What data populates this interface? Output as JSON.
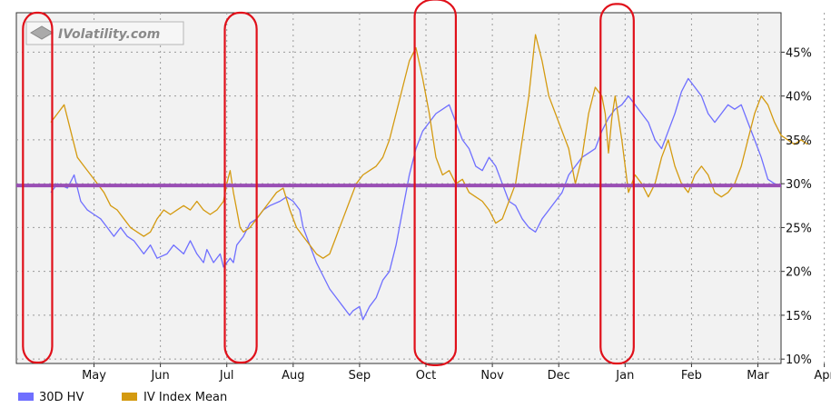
{
  "watermark": "IVolatility.com",
  "colors": {
    "background": "#ffffff",
    "plot_bg": "#f2f2f2",
    "grid": "#9a9a9a",
    "hv": "#6f6fff",
    "iv": "#d49a10",
    "reference": "#9a4fb5",
    "highlight": "#e0101a"
  },
  "chart_data": {
    "type": "line",
    "title": "",
    "xlabel": "",
    "ylabel": "",
    "x_ticks": [
      "May",
      "Jun",
      "Jul",
      "Aug",
      "Sep",
      "Oct",
      "Nov",
      "Dec",
      "Jan",
      "Feb",
      "Mar",
      "Apr"
    ],
    "y_ticks": [
      "10%",
      "15%",
      "20%",
      "25%",
      "30%",
      "35%",
      "40%",
      "45%"
    ],
    "ylim": [
      9.5,
      49.5
    ],
    "xlim": [
      0,
      12
    ],
    "grid": true,
    "legend_position": "bottom-left",
    "series": [
      {
        "name": "30D HV",
        "color_key": "hv",
        "points": [
          [
            0,
            29
          ],
          [
            0.1,
            30
          ],
          [
            0.25,
            29.5
          ],
          [
            0.35,
            31
          ],
          [
            0.45,
            28
          ],
          [
            0.55,
            27
          ],
          [
            0.65,
            26.5
          ],
          [
            0.75,
            26
          ],
          [
            0.85,
            25
          ],
          [
            0.95,
            24
          ],
          [
            1.05,
            25
          ],
          [
            1.15,
            24
          ],
          [
            1.25,
            23.5
          ],
          [
            1.4,
            22
          ],
          [
            1.5,
            23
          ],
          [
            1.6,
            21.5
          ],
          [
            1.75,
            22
          ],
          [
            1.85,
            23
          ],
          [
            2.0,
            22
          ],
          [
            2.1,
            23.5
          ],
          [
            2.2,
            22
          ],
          [
            2.3,
            21
          ],
          [
            2.35,
            22.5
          ],
          [
            2.45,
            21
          ],
          [
            2.55,
            22
          ],
          [
            2.6,
            20.5
          ],
          [
            2.7,
            21.5
          ],
          [
            2.75,
            21
          ],
          [
            2.8,
            23
          ],
          [
            2.9,
            24
          ],
          [
            3.0,
            25.5
          ],
          [
            3.1,
            26
          ],
          [
            3.2,
            27
          ],
          [
            3.3,
            27.5
          ],
          [
            3.45,
            28
          ],
          [
            3.55,
            28.5
          ],
          [
            3.65,
            28
          ],
          [
            3.75,
            27
          ],
          [
            3.8,
            25
          ],
          [
            3.9,
            23
          ],
          [
            4.0,
            21
          ],
          [
            4.1,
            19.5
          ],
          [
            4.2,
            18
          ],
          [
            4.3,
            17
          ],
          [
            4.4,
            16
          ],
          [
            4.5,
            15
          ],
          [
            4.55,
            15.5
          ],
          [
            4.65,
            16
          ],
          [
            4.7,
            14.5
          ],
          [
            4.8,
            16
          ],
          [
            4.9,
            17
          ],
          [
            5.0,
            19
          ],
          [
            5.1,
            20
          ],
          [
            5.2,
            23
          ],
          [
            5.3,
            27
          ],
          [
            5.4,
            31
          ],
          [
            5.5,
            34
          ],
          [
            5.6,
            36
          ],
          [
            5.7,
            37
          ],
          [
            5.8,
            38
          ],
          [
            5.9,
            38.5
          ],
          [
            6.0,
            39
          ],
          [
            6.1,
            37
          ],
          [
            6.2,
            35
          ],
          [
            6.3,
            34
          ],
          [
            6.4,
            32
          ],
          [
            6.5,
            31.5
          ],
          [
            6.6,
            33
          ],
          [
            6.7,
            32
          ],
          [
            6.8,
            30
          ],
          [
            6.9,
            28
          ],
          [
            7.0,
            27.5
          ],
          [
            7.1,
            26
          ],
          [
            7.2,
            25
          ],
          [
            7.3,
            24.5
          ],
          [
            7.4,
            26
          ],
          [
            7.5,
            27
          ],
          [
            7.6,
            28
          ],
          [
            7.7,
            29
          ],
          [
            7.8,
            31
          ],
          [
            7.9,
            32
          ],
          [
            8.0,
            33
          ],
          [
            8.1,
            33.5
          ],
          [
            8.2,
            34
          ],
          [
            8.3,
            36
          ],
          [
            8.4,
            37.5
          ],
          [
            8.5,
            38.5
          ],
          [
            8.6,
            39
          ],
          [
            8.7,
            40
          ],
          [
            8.8,
            39
          ],
          [
            8.9,
            38
          ],
          [
            9.0,
            37
          ],
          [
            9.1,
            35
          ],
          [
            9.2,
            34
          ],
          [
            9.3,
            36
          ],
          [
            9.4,
            38
          ],
          [
            9.5,
            40.5
          ],
          [
            9.6,
            42
          ],
          [
            9.7,
            41
          ],
          [
            9.8,
            40
          ],
          [
            9.9,
            38
          ],
          [
            10.0,
            37
          ],
          [
            10.1,
            38
          ],
          [
            10.2,
            39
          ],
          [
            10.3,
            38.5
          ],
          [
            10.4,
            39
          ],
          [
            10.5,
            37
          ],
          [
            10.6,
            35
          ],
          [
            10.7,
            33
          ],
          [
            10.8,
            30.5
          ],
          [
            10.9,
            30
          ],
          [
            11.0,
            29.8
          ]
        ]
      },
      {
        "name": "IV Index Mean",
        "color_key": "iv",
        "points": [
          [
            0,
            37
          ],
          [
            0.1,
            38
          ],
          [
            0.2,
            39
          ],
          [
            0.3,
            36
          ],
          [
            0.4,
            33
          ],
          [
            0.5,
            32
          ],
          [
            0.6,
            31
          ],
          [
            0.7,
            30
          ],
          [
            0.8,
            29
          ],
          [
            0.9,
            27.5
          ],
          [
            1.0,
            27
          ],
          [
            1.1,
            26
          ],
          [
            1.2,
            25
          ],
          [
            1.3,
            24.5
          ],
          [
            1.4,
            24
          ],
          [
            1.5,
            24.5
          ],
          [
            1.6,
            26
          ],
          [
            1.7,
            27
          ],
          [
            1.8,
            26.5
          ],
          [
            1.9,
            27
          ],
          [
            2.0,
            27.5
          ],
          [
            2.1,
            27
          ],
          [
            2.2,
            28
          ],
          [
            2.3,
            27
          ],
          [
            2.4,
            26.5
          ],
          [
            2.5,
            27
          ],
          [
            2.6,
            28
          ],
          [
            2.65,
            30
          ],
          [
            2.7,
            31.5
          ],
          [
            2.75,
            29
          ],
          [
            2.8,
            27
          ],
          [
            2.85,
            25
          ],
          [
            2.9,
            24.5
          ],
          [
            3.0,
            25
          ],
          [
            3.1,
            26
          ],
          [
            3.2,
            27
          ],
          [
            3.3,
            28
          ],
          [
            3.4,
            29
          ],
          [
            3.5,
            29.5
          ],
          [
            3.6,
            27
          ],
          [
            3.7,
            25
          ],
          [
            3.8,
            24
          ],
          [
            3.9,
            23
          ],
          [
            4.0,
            22
          ],
          [
            4.1,
            21.5
          ],
          [
            4.2,
            22
          ],
          [
            4.3,
            24
          ],
          [
            4.4,
            26
          ],
          [
            4.5,
            28
          ],
          [
            4.6,
            30
          ],
          [
            4.7,
            31
          ],
          [
            4.8,
            31.5
          ],
          [
            4.9,
            32
          ],
          [
            5.0,
            33
          ],
          [
            5.1,
            35
          ],
          [
            5.2,
            38
          ],
          [
            5.3,
            41
          ],
          [
            5.4,
            44
          ],
          [
            5.5,
            45.5
          ],
          [
            5.6,
            42
          ],
          [
            5.7,
            38
          ],
          [
            5.8,
            33
          ],
          [
            5.9,
            31
          ],
          [
            6.0,
            31.5
          ],
          [
            6.1,
            30
          ],
          [
            6.2,
            30.5
          ],
          [
            6.3,
            29
          ],
          [
            6.4,
            28.5
          ],
          [
            6.5,
            28
          ],
          [
            6.6,
            27
          ],
          [
            6.7,
            25.5
          ],
          [
            6.8,
            26
          ],
          [
            6.9,
            28
          ],
          [
            7.0,
            30
          ],
          [
            7.1,
            35
          ],
          [
            7.2,
            40
          ],
          [
            7.3,
            47
          ],
          [
            7.4,
            44
          ],
          [
            7.5,
            40
          ],
          [
            7.6,
            38
          ],
          [
            7.7,
            36
          ],
          [
            7.8,
            34
          ],
          [
            7.9,
            30
          ],
          [
            8.0,
            33
          ],
          [
            8.1,
            38
          ],
          [
            8.2,
            41
          ],
          [
            8.3,
            40
          ],
          [
            8.35,
            38
          ],
          [
            8.4,
            33.5
          ],
          [
            8.45,
            37.5
          ],
          [
            8.5,
            40
          ],
          [
            8.6,
            35
          ],
          [
            8.7,
            29
          ],
          [
            8.8,
            31
          ],
          [
            8.9,
            30
          ],
          [
            9.0,
            28.5
          ],
          [
            9.1,
            30
          ],
          [
            9.2,
            33
          ],
          [
            9.3,
            35
          ],
          [
            9.4,
            32
          ],
          [
            9.5,
            30
          ],
          [
            9.6,
            29
          ],
          [
            9.7,
            31
          ],
          [
            9.8,
            32
          ],
          [
            9.9,
            31
          ],
          [
            10.0,
            29
          ],
          [
            10.1,
            28.5
          ],
          [
            10.2,
            29
          ],
          [
            10.3,
            30
          ],
          [
            10.4,
            32
          ],
          [
            10.5,
            35
          ],
          [
            10.6,
            38
          ],
          [
            10.7,
            40
          ],
          [
            10.8,
            39
          ],
          [
            10.9,
            37
          ],
          [
            11.0,
            35.5
          ],
          [
            11.1,
            35
          ],
          [
            11.2,
            34.5
          ],
          [
            11.3,
            35
          ],
          [
            11.4,
            34.5
          ]
        ]
      }
    ],
    "reference_line": {
      "value": 29.8,
      "color_key": "reference"
    },
    "highlight_regions": [
      {
        "x_start": -0.42,
        "x_end": 0.02,
        "y_top": 49.5,
        "y_bottom": 9.6
      },
      {
        "x_start": 2.62,
        "x_end": 3.1,
        "y_top": 49.5,
        "y_bottom": 9.6
      },
      {
        "x_start": 5.48,
        "x_end": 6.1,
        "y_top": 51,
        "y_bottom": 9.3
      },
      {
        "x_start": 8.28,
        "x_end": 8.78,
        "y_top": 50.5,
        "y_bottom": 9.5
      }
    ]
  }
}
